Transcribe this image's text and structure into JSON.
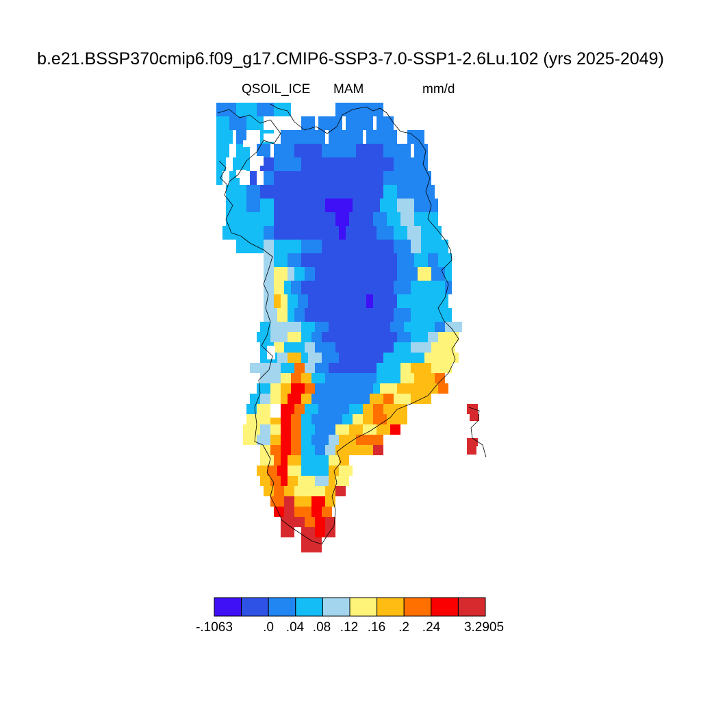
{
  "title": "b.e21.BSSP370cmip6.f09_g17.CMIP6-SSP3-7.0-SSP1-2.6Lu.102 (yrs 2025-2049)",
  "variable": "QSOIL_ICE",
  "season": "MAM",
  "units": "mm/d",
  "colorbar": {
    "colors": [
      "#3f10f6",
      "#2f52e6",
      "#2185f2",
      "#14bdf6",
      "#a3d5ee",
      "#fff47a",
      "#ffbd14",
      "#ff7000",
      "#fb0000",
      "#d72a2e"
    ],
    "labels": [
      "-.1063",
      ".0",
      ".04",
      ".08",
      ".12",
      ".16",
      ".2",
      ".24",
      "3.2905"
    ]
  },
  "map_data": {
    "type": "gridded-field-map",
    "region": "Greenland",
    "field_pattern": "low values (dark blue) over the ice-sheet interior, rising toward the margins; highest values (orange/red) along the southwest and southeast coasts and the southern tip"
  }
}
